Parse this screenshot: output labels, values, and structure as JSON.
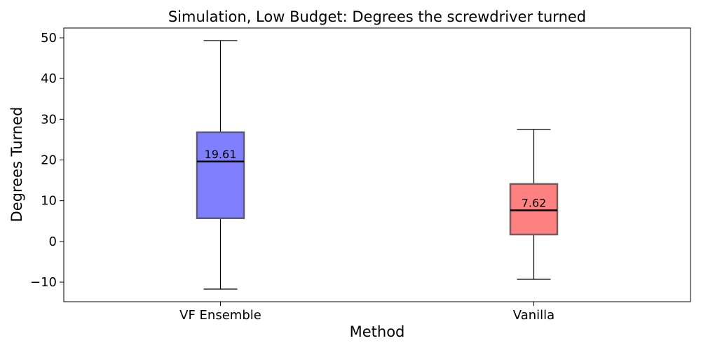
{
  "chart_data": {
    "type": "box",
    "title": "Simulation, Low Budget: Degrees the screwdriver turned",
    "xlabel": "Method",
    "ylabel": "Degrees Turned",
    "ylim": [
      -14.8,
      52.4
    ],
    "yticks": [
      -10,
      0,
      10,
      20,
      30,
      40,
      50
    ],
    "grid": false,
    "categories": [
      "VF Ensemble",
      "Vanilla"
    ],
    "series": [
      {
        "category": "VF Ensemble",
        "whisker_low": -11.7,
        "q1": 5.7,
        "median": 19.61,
        "q3": 26.8,
        "whisker_high": 49.3,
        "median_label": "19.61",
        "fill": "#8080ff",
        "edge": "#5a5a7a"
      },
      {
        "category": "Vanilla",
        "whisker_low": -9.3,
        "q1": 1.7,
        "median": 7.62,
        "q3": 14.1,
        "whisker_high": 27.5,
        "median_label": "7.62",
        "fill": "#ff8080",
        "edge": "#7a5a5a"
      }
    ]
  }
}
